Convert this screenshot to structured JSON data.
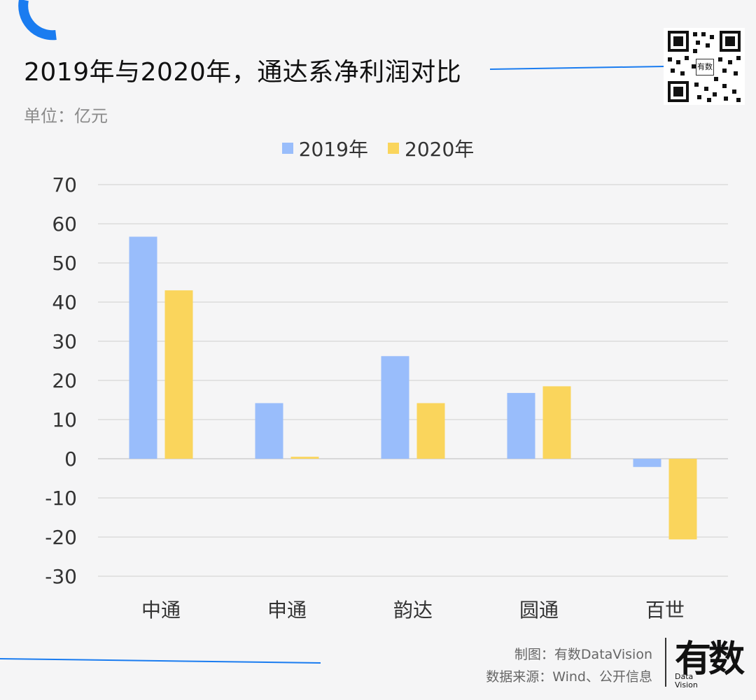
{
  "header": {
    "title": "2019年与2020年，通达系净利润对比",
    "unit": "单位：亿元"
  },
  "qr": {
    "badge": "有数"
  },
  "colors": {
    "s2019": "#99bdfb",
    "s2020": "#fad55c",
    "accent": "#1a7cf0"
  },
  "chart_data": {
    "type": "bar",
    "categories": [
      "中通",
      "申通",
      "韵达",
      "圆通",
      "百世"
    ],
    "series": [
      {
        "name": "2019年",
        "values": [
          56.7,
          14.2,
          26.2,
          16.8,
          -2.1
        ]
      },
      {
        "name": "2020年",
        "values": [
          43.0,
          0.5,
          14.2,
          18.5,
          -20.6
        ]
      }
    ],
    "ylim": [
      -30,
      70
    ],
    "yticks": [
      "70",
      "60",
      "50",
      "40",
      "30",
      "20",
      "10",
      "0",
      "-10",
      "-20",
      "-30"
    ],
    "grid": true,
    "legend_position": "top-center"
  },
  "footer": {
    "credit_line1": "制图：有数DataVision",
    "credit_line2": "数据来源：Wind、公开信息",
    "logo_main": "有数",
    "logo_sub1": "Data",
    "logo_sub2": "Vision"
  }
}
